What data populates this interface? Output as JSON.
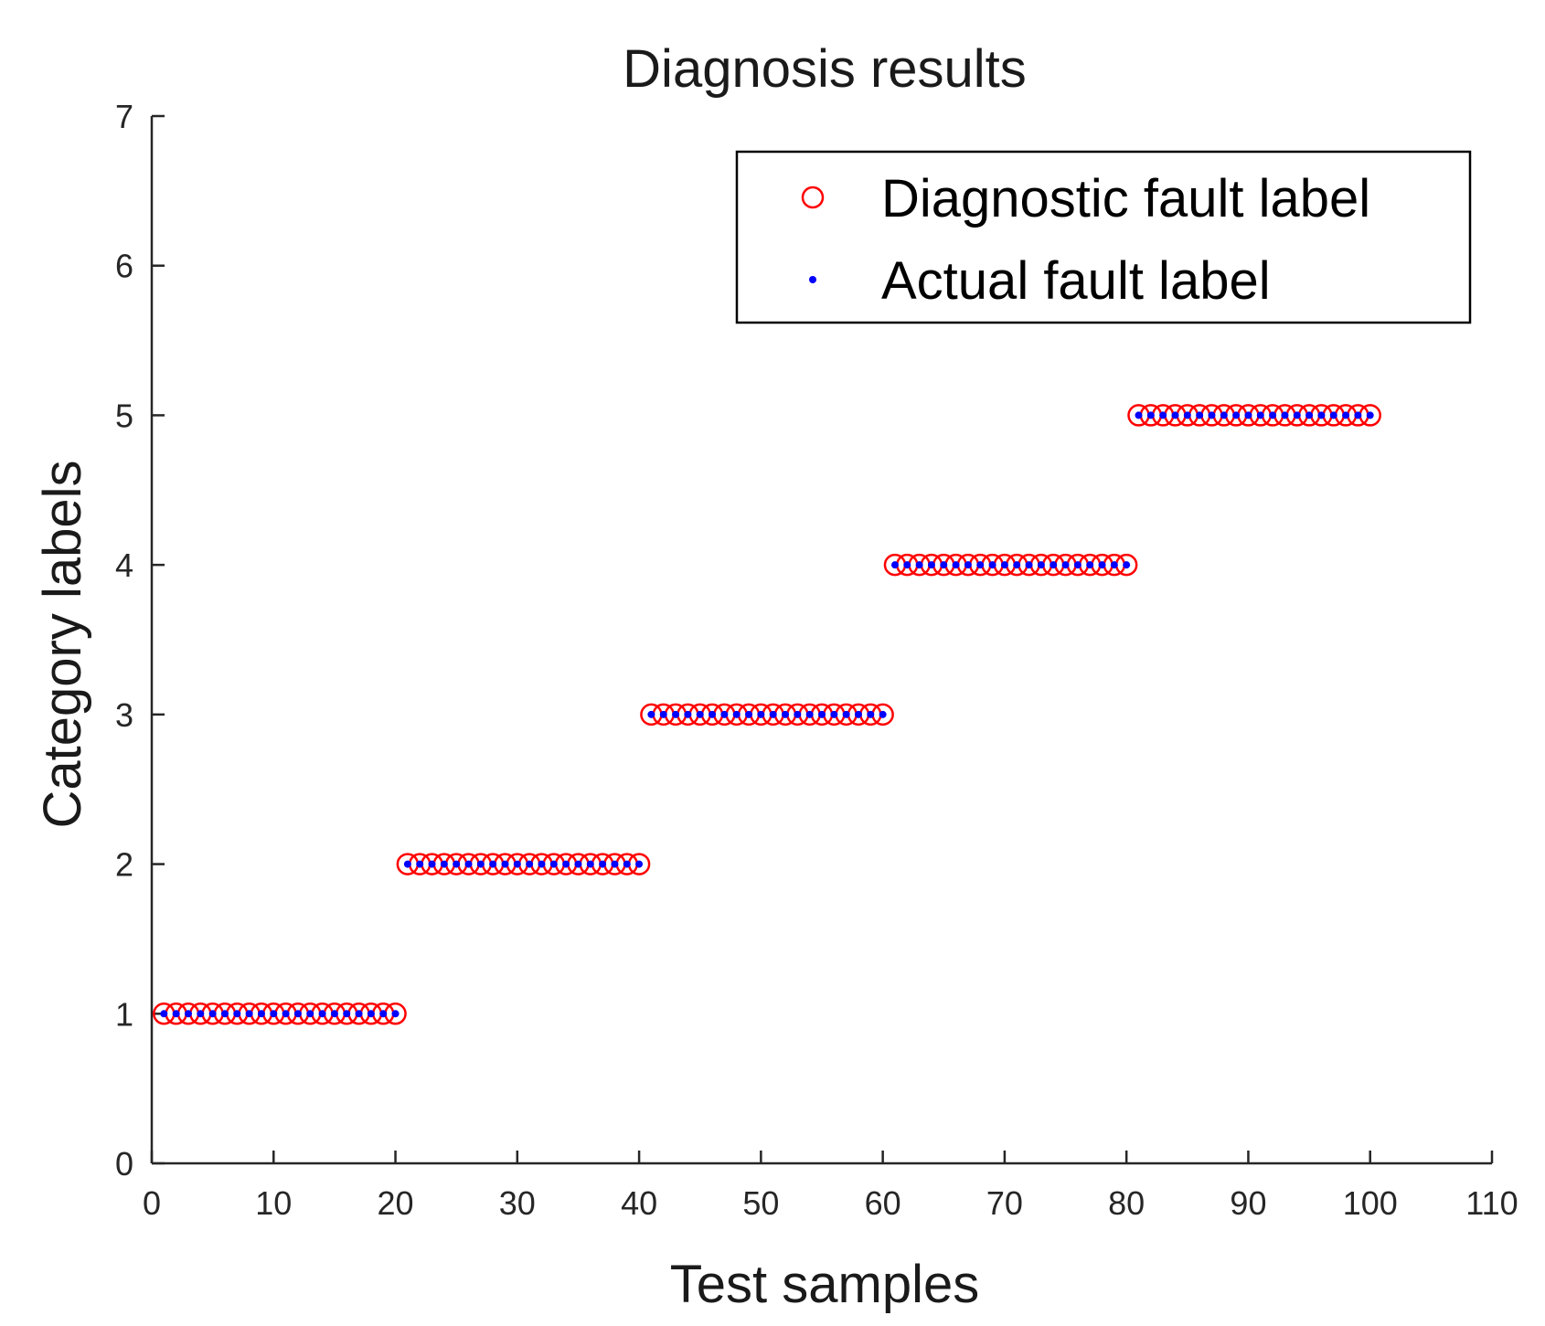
{
  "chart_data": {
    "type": "scatter",
    "title": "Diagnosis results",
    "xlabel": "Test samples",
    "ylabel": "Category labels",
    "xlim": [
      0,
      110
    ],
    "ylim": [
      0,
      7
    ],
    "xticks": [
      0,
      10,
      20,
      30,
      40,
      50,
      60,
      70,
      80,
      90,
      100,
      110
    ],
    "yticks": [
      0,
      1,
      2,
      3,
      4,
      5,
      6,
      7
    ],
    "grid": false,
    "legend_position": "top-right",
    "colors": {
      "diagnostic": "#ff0000",
      "actual": "#0000ff",
      "axis": "#262626"
    },
    "series": [
      {
        "name": "Diagnostic fault label",
        "marker": "circle-open",
        "segments": [
          {
            "x_from": 1,
            "x_to": 20,
            "y": 1
          },
          {
            "x_from": 21,
            "x_to": 40,
            "y": 2
          },
          {
            "x_from": 41,
            "x_to": 60,
            "y": 3
          },
          {
            "x_from": 61,
            "x_to": 80,
            "y": 4
          },
          {
            "x_from": 81,
            "x_to": 100,
            "y": 5
          }
        ]
      },
      {
        "name": "Actual fault label",
        "marker": "dot",
        "segments": [
          {
            "x_from": 1,
            "x_to": 20,
            "y": 1
          },
          {
            "x_from": 21,
            "x_to": 40,
            "y": 2
          },
          {
            "x_from": 41,
            "x_to": 60,
            "y": 3
          },
          {
            "x_from": 61,
            "x_to": 80,
            "y": 4
          },
          {
            "x_from": 81,
            "x_to": 100,
            "y": 5
          }
        ]
      }
    ]
  }
}
